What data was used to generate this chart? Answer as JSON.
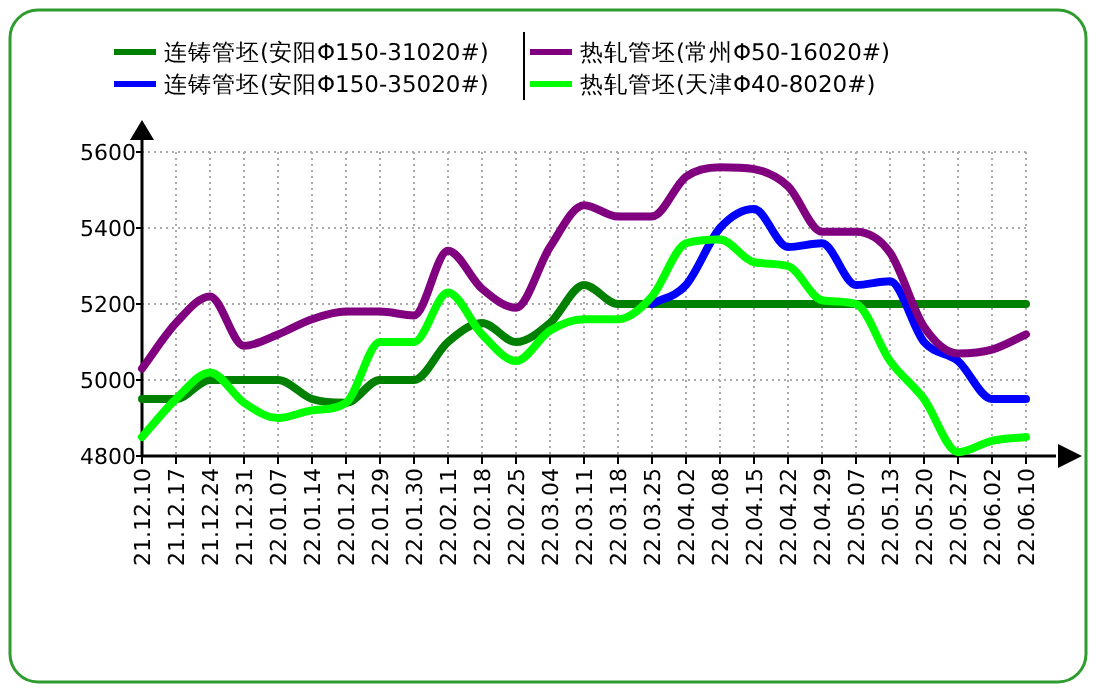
{
  "chart_data": {
    "type": "line",
    "categories": [
      "21.12.10",
      "21.12.17",
      "21.12.24",
      "21.12.31",
      "22.01.07",
      "22.01.14",
      "22.01.21",
      "22.01.29",
      "22.01.30",
      "22.02.11",
      "22.02.18",
      "22.02.25",
      "22.03.04",
      "22.03.11",
      "22.03.18",
      "22.03.25",
      "22.04.02",
      "22.04.08",
      "22.04.15",
      "22.04.22",
      "22.04.29",
      "22.05.07",
      "22.05.13",
      "22.05.20",
      "22.05.27",
      "22.06.02",
      "22.06.10"
    ],
    "series": [
      {
        "name": "连铸管坯(安阳Φ150-31020#)",
        "color": "#008000",
        "values": [
          4950,
          4950,
          5000,
          5000,
          5000,
          4950,
          4940,
          5000,
          5000,
          5100,
          5150,
          5100,
          5150,
          5250,
          5200,
          5200,
          5200,
          5200,
          5200,
          5200,
          5200,
          5200,
          5200,
          5200,
          5200,
          5200,
          5200
        ]
      },
      {
        "name": "连铸管坯(安阳Φ150-35020#)",
        "color": "#0000ff",
        "values": [
          null,
          null,
          null,
          null,
          null,
          null,
          null,
          null,
          null,
          null,
          null,
          null,
          null,
          null,
          null,
          5200,
          5250,
          5400,
          5450,
          5350,
          5360,
          5250,
          5260,
          5100,
          5050,
          4950,
          4950
        ]
      },
      {
        "name": "热轧管坯(常州Φ50-16020#)",
        "color": "#800080",
        "values": [
          5030,
          5150,
          5220,
          5090,
          5120,
          5160,
          5180,
          5180,
          5170,
          5340,
          5240,
          5190,
          5350,
          5460,
          5430,
          5430,
          5535,
          5560,
          5555,
          5510,
          5390,
          5390,
          5335,
          5140,
          5070,
          5080,
          5120
        ]
      },
      {
        "name": "热轧管坯(天津Φ40-8020#)",
        "color": "#00ff00",
        "values": [
          4850,
          4950,
          5020,
          4940,
          4900,
          4920,
          4940,
          5100,
          5100,
          5230,
          5120,
          5050,
          5130,
          5160,
          5160,
          5220,
          5360,
          5370,
          5310,
          5300,
          5210,
          5200,
          5050,
          4950,
          4810,
          4840,
          4850
        ]
      }
    ],
    "ylim": [
      4800,
      5600
    ],
    "yticks": [
      4800,
      5000,
      5200,
      5400,
      5600
    ],
    "grid": true,
    "legend": "top",
    "line_style": "solid",
    "marker": "none"
  }
}
